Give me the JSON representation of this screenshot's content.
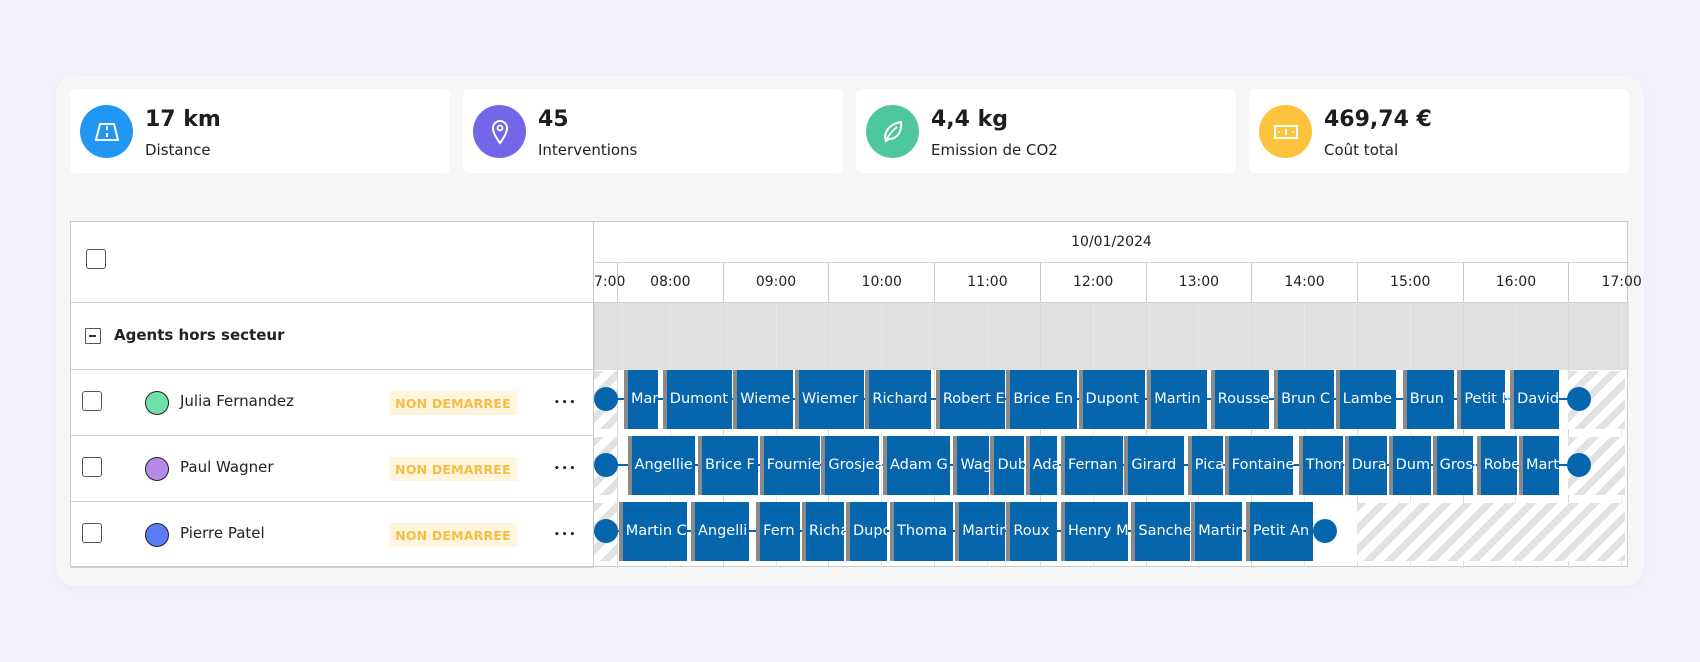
{
  "stats": [
    {
      "value": "17 km",
      "label": "Distance",
      "icon": "road-icon",
      "color": "#2196f3"
    },
    {
      "value": "45",
      "label": "Interventions",
      "icon": "map-pin-icon",
      "color": "#7367e8"
    },
    {
      "value": "4,4 kg",
      "label": "Emission de CO2",
      "icon": "leaf-icon",
      "color": "#4ec7a0"
    },
    {
      "value": "469,74 €",
      "label": "Coût total",
      "icon": "banknote-icon",
      "color": "#fdc33d"
    }
  ],
  "schedule": {
    "date": "10/01/2024",
    "hours": [
      "7:00",
      "08:00",
      "09:00",
      "10:00",
      "11:00",
      "12:00",
      "13:00",
      "14:00",
      "15:00",
      "16:00",
      "17:00"
    ],
    "group_label": "Agents hors secteur",
    "event_color": "#0565ad",
    "agents": [
      {
        "name": "Julia Fernandez",
        "color": "#6fe0a8",
        "status": "NON DEMARREE",
        "start": "07:54",
        "end": "17:06",
        "unavailable_from": "17:00",
        "events": [
          [
            "Mar",
            "08:04",
            "08:23"
          ],
          [
            "Dumont",
            "08:26",
            "09:05"
          ],
          [
            "Wieme",
            "09:06",
            "09:40"
          ],
          [
            "Wiemer",
            "09:41",
            "10:20"
          ],
          [
            "Richard",
            "10:21",
            "10:58"
          ],
          [
            "Robert E",
            "11:01",
            "11:40"
          ],
          [
            "Brice En",
            "11:41",
            "12:21"
          ],
          [
            "Dupont",
            "12:22",
            "13:00"
          ],
          [
            "Martin",
            "13:01",
            "13:35"
          ],
          [
            "Rousse",
            "13:37",
            "14:10"
          ],
          [
            "Brun C",
            "14:13",
            "14:47"
          ],
          [
            "Lambe",
            "14:48",
            "15:22"
          ],
          [
            "Brun",
            "15:26",
            "15:55"
          ],
          [
            "Petit N",
            "15:57",
            "16:24"
          ],
          [
            "David",
            "16:27",
            "16:55"
          ]
        ]
      },
      {
        "name": "Paul Wagner",
        "color": "#b48be8",
        "status": "NON DEMARREE",
        "start": "07:54",
        "end": "17:06",
        "unavailable_from": "17:00",
        "events": [
          [
            "Angellie",
            "08:06",
            "08:44"
          ],
          [
            "Brice F",
            "08:46",
            "09:20"
          ],
          [
            "Fournie",
            "09:21",
            "09:55"
          ],
          [
            "Grosjea",
            "09:56",
            "10:29"
          ],
          [
            "Adam G",
            "10:31",
            "11:09"
          ],
          [
            "Wag",
            "11:11",
            "11:31"
          ],
          [
            "Dub",
            "11:32",
            "11:51"
          ],
          [
            "Ada",
            "11:52",
            "12:10"
          ],
          [
            "Fernan",
            "12:12",
            "12:47"
          ],
          [
            "Girard",
            "12:48",
            "13:22"
          ],
          [
            "Pica",
            "13:24",
            "13:44"
          ],
          [
            "Fontaine",
            "13:45",
            "14:24"
          ],
          [
            "Thom",
            "14:27",
            "14:52"
          ],
          [
            "Dura",
            "14:53",
            "15:17"
          ],
          [
            "Dum",
            "15:18",
            "15:42"
          ],
          [
            "Grosj",
            "15:43",
            "16:06"
          ],
          [
            "Robe",
            "16:08",
            "16:31"
          ],
          [
            "Mart",
            "16:32",
            "16:55"
          ]
        ]
      },
      {
        "name": "Pierre Patel",
        "color": "#5b7cf7",
        "status": "NON DEMARREE",
        "start": "07:54",
        "end": "14:42",
        "unavailable_from": "15:00",
        "events": [
          [
            "Martin C",
            "08:01",
            "08:40"
          ],
          [
            "Angelli",
            "08:42",
            "09:15"
          ],
          [
            "Fern",
            "09:19",
            "09:44"
          ],
          [
            "Richa",
            "09:45",
            "10:09"
          ],
          [
            "Dupo",
            "10:10",
            "10:33"
          ],
          [
            "Thoma",
            "10:35",
            "11:11"
          ],
          [
            "Martin",
            "11:12",
            "11:40"
          ],
          [
            "Roux",
            "11:41",
            "12:10"
          ],
          [
            "Henry M",
            "12:12",
            "12:50"
          ],
          [
            "Sanche",
            "12:52",
            "13:25"
          ],
          [
            "Martin",
            "13:26",
            "13:55"
          ],
          [
            "Petit An",
            "13:57",
            "14:35"
          ]
        ]
      }
    ]
  }
}
